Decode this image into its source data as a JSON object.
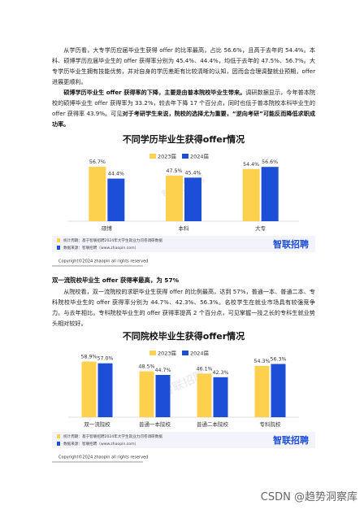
{
  "document": {
    "paragraphs": [
      {
        "segments": [
          {
            "text": "从学历看，大专学历应届毕业生获得 offer 的比率最高，占比 56.6%，且高于去年的 54.4%。本科、硕博学历应届毕业生的 offer 获得率分别为 45.4%、44.4%，均低于去年的 47.5%、56.7%。大专学历毕业生拥有技能优势，并对自身的学历差距有比较清晰的认知，因而会合理调整就业预期，offer 进展更顺利。",
            "bold": false
          }
        ]
      },
      {
        "segments": [
          {
            "text": "硕博学历毕业生 offer 获得率的下降，主要是由普本院校毕业生带来。",
            "bold": true
          },
          {
            "text": "调研数据显示，今年普本院校的硕博毕业生 offer 获得率为 33.2%，较去年下降 17 个百分点，同时也低于普本院校本科毕业生的 offer 获得率 43.9%。可见",
            "bold": false
          },
          {
            "text": "对于考研学生来说，院校的选择尤为重要，“逆向考研”可能反而降低求职成功率。",
            "bold": true
          }
        ]
      },
      {
        "segments": [
          {
            "text": "从院校看，双一流院校的求职毕业生获得 offer 的比例最高，达到 57%，普通一本、普通二本、专科院校毕业生的 offer 获得率分别为 44.7%、42.3%、56.3%。名校学生在就业市场具有较强竞争力。与去年相比，专科院校毕业生的 offer 获得率提高 2 个百分点，可见掌握一技之长的专科生就业势头相对较好。",
            "bold": false
          }
        ]
      }
    ],
    "section_heading": "双一流院校毕业生 offer 获得率最高，为 57%",
    "watermark": "CSDN @趋势洞察库"
  },
  "chart_data": [
    {
      "type": "bar",
      "title": "不同学历毕业生获得offer情况",
      "categories": [
        "硕博",
        "本科",
        "大专"
      ],
      "series": [
        {
          "name": "2023届",
          "color": "#fdd04e",
          "values": [
            56.7,
            47.5,
            54.4
          ],
          "value_labels": [
            "56.7%",
            "47.5%",
            "54.4%"
          ]
        },
        {
          "name": "2024届",
          "color": "#1d4ed8",
          "values": [
            44.4,
            45.4,
            56.6
          ],
          "value_labels": [
            "44.4%",
            "45.4%",
            "56.6%"
          ]
        }
      ],
      "ylim": [
        0,
        70
      ],
      "notes": [
        "统计周期：基于智联招聘2024年大学生就业力问卷调研数据",
        "数据来源：智联招聘（www.zhaopin.com）"
      ],
      "logo": "智联招聘",
      "copyright": "Copyright©2024 zhaopin all rights reserved"
    },
    {
      "type": "bar",
      "title": "不同院校毕业生获得offer情况",
      "categories": [
        "双一流院校",
        "普通一本院校",
        "普通二本院校",
        "专科院校"
      ],
      "series": [
        {
          "name": "2023届",
          "color": "#fdd04e",
          "values": [
            58.9,
            48.5,
            46.1,
            54.3
          ],
          "value_labels": [
            "58.9%",
            "48.5%",
            "46.1%",
            "54.3%"
          ]
        },
        {
          "name": "2024届",
          "color": "#1d4ed8",
          "values": [
            57.0,
            44.7,
            42.3,
            56.3
          ],
          "value_labels": [
            "57.0%",
            "44.7%",
            "42.3%",
            "56.3%"
          ]
        }
      ],
      "ylim": [
        0,
        70
      ],
      "notes": [
        "统计周期：基于智联招聘2024年大学生就业力问卷调研数据",
        "数据来源：智联招聘（www.zhaopin.com）"
      ],
      "logo": "智联招聘",
      "copyright": "Copyright©2024 zhaopin all rights reserved"
    }
  ]
}
